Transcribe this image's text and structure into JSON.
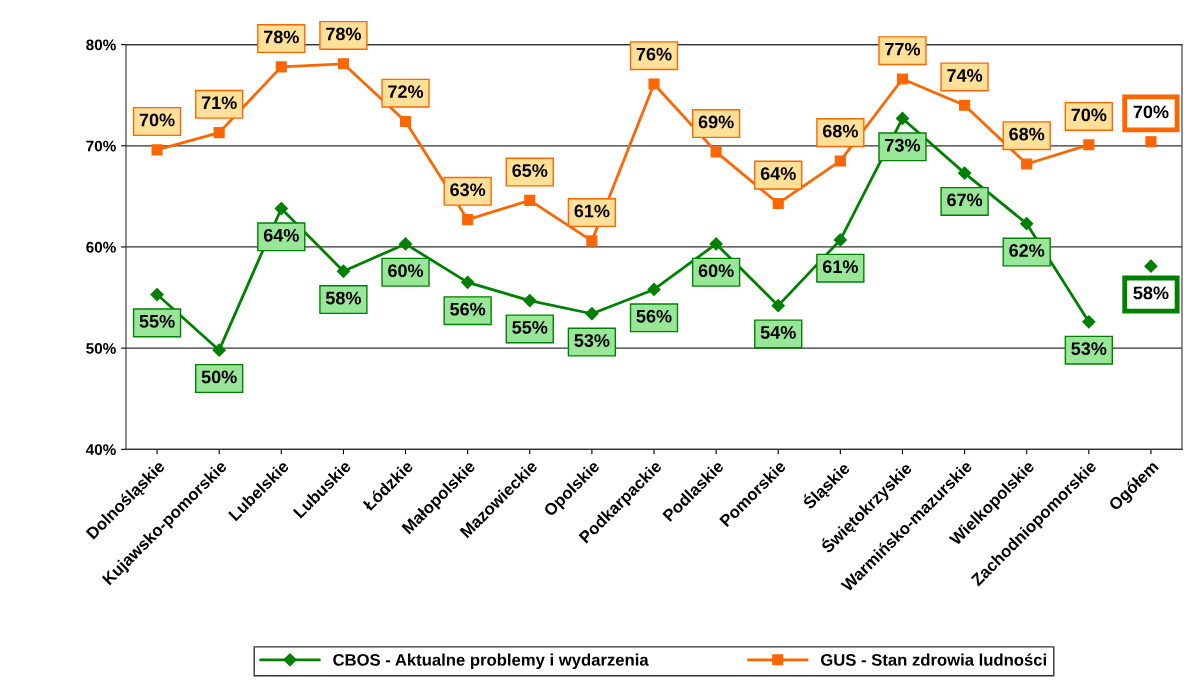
{
  "chart_data": {
    "type": "line",
    "categories": [
      "Dolnośląskie",
      "Kujawsko-pomorskie",
      "Lubelskie",
      "Lubuskie",
      "Łódzkie",
      "Małopolskie",
      "Mazowieckie",
      "Opolskie",
      "Podkarpackie",
      "Podlaskie",
      "Pomorskie",
      "Śląskie",
      "Świętokrzyskie",
      "Warmińsko-mazurskie",
      "Wielkopolskie",
      "Zachodniopomorskie",
      "Ogółem"
    ],
    "series": [
      {
        "name": "CBOS - Aktualne problemy i wydarzenia",
        "color": "#008000",
        "marker": "diamond",
        "values": [
          55.3,
          49.8,
          63.8,
          57.6,
          60.3,
          56.5,
          54.7,
          53.4,
          55.8,
          60.3,
          54.2,
          60.7,
          72.7,
          67.3,
          62.3,
          52.6,
          null
        ],
        "value_labels": [
          "55%",
          "50%",
          "64%",
          "58%",
          "60%",
          "56%",
          "55%",
          "53%",
          "56%",
          "60%",
          "54%",
          "61%",
          "73%",
          "67%",
          "62%",
          "53%",
          null
        ]
      },
      {
        "name": "GUS - Stan zdrowia ludności",
        "color": "#ff6600",
        "marker": "square",
        "values": [
          69.6,
          71.3,
          77.8,
          78.1,
          72.4,
          62.7,
          64.6,
          60.6,
          76.1,
          69.4,
          64.3,
          68.5,
          76.6,
          74.0,
          68.2,
          70.1,
          null
        ],
        "value_labels": [
          "70%",
          "71%",
          "78%",
          "78%",
          "72%",
          "63%",
          "65%",
          "61%",
          "76%",
          "69%",
          "64%",
          "68%",
          "77%",
          "74%",
          "68%",
          "70%",
          null
        ]
      },
      {
        "type": "scatter",
        "color": "#008000",
        "marker": "diamond",
        "x": [
          "Ogółem"
        ],
        "values": [
          58.1
        ],
        "value_labels": [
          "58%"
        ]
      },
      {
        "type": "scatter",
        "color": "#ff6600",
        "marker": "square",
        "x": [
          "Ogółem"
        ],
        "values": [
          70.4
        ],
        "value_labels": [
          "70%"
        ]
      }
    ],
    "ylim": [
      40,
      80
    ],
    "yticks": [
      {
        "value": 40,
        "label": "40%"
      },
      {
        "value": 50,
        "label": "50%"
      },
      {
        "value": 60,
        "label": "60%"
      },
      {
        "value": 70,
        "label": "70%"
      },
      {
        "value": 80,
        "label": "80%"
      }
    ],
    "grid": "y",
    "legend": "bottom"
  }
}
